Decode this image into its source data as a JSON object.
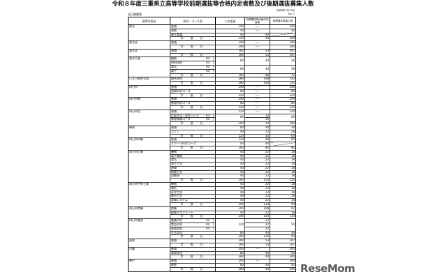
{
  "title": "令和８年度三重県立高等学校前期選抜等合格内定者数及び後期選抜募集人数",
  "date": "令和8年2月13日",
  "page_no": "No. 1",
  "course_type": "全日制課程",
  "headers": {
    "school": "高等学校名",
    "course": "学科・コース名",
    "capacity": "入学定員",
    "early": "前期選抜等合格内定者数",
    "later": "後期選抜募集人数"
  },
  "watermark": "ReseMom",
  "schools": [
    {
      "name": "桑名",
      "rows": [
        {
          "course": "普通",
          "cap": "240",
          "early": "----",
          "later": "240"
        },
        {
          "course": "理数",
          "cap": "40",
          "early": "----",
          "later": "40"
        },
        {
          "course": "衛生看護",
          "cap": "40",
          "early": "40",
          "later": "",
          "diag": true
        },
        {
          "course": "学　校　計",
          "total": true,
          "cap": "320",
          "early": "40",
          "later": "280"
        }
      ]
    },
    {
      "name": "桑名西",
      "rows": [
        {
          "course": "普通",
          "cap": "240",
          "early": "----",
          "later": "240"
        },
        {
          "course": "学　校　計",
          "total": true,
          "cap": "240",
          "early": "----",
          "later": "240"
        }
      ]
    },
    {
      "name": "桑名北",
      "rows": [
        {
          "course": "普通",
          "cap": "160",
          "early": "53",
          "later": "107"
        },
        {
          "course": "学　校　計",
          "total": true,
          "cap": "160",
          "early": "53",
          "later": "107"
        }
      ]
    },
    {
      "name": "桑名工業",
      "rows": [
        {
          "course": "機械",
          "sub": "40",
          "cap": "80",
          "cap_span": 2,
          "early": "44",
          "early_span": 2,
          "later": "36",
          "later_span": 2
        },
        {
          "course": "材料技術",
          "sub": "40"
        },
        {
          "course": "電気",
          "sub": "40",
          "cap": "80",
          "cap_span": 2,
          "early": "44",
          "early_span": 2,
          "later": "36",
          "later_span": 2
        },
        {
          "course": "電子",
          "sub": "40"
        },
        {
          "course": "学　校　計",
          "total": true,
          "cap": "160",
          "early": "88",
          "later": "72"
        }
      ]
    },
    {
      "name": "いなべ総合学園",
      "rows": [
        {
          "course": "総合学科",
          "cap": "280",
          "early": "148",
          "later": "132"
        },
        {
          "course": "学　校　計",
          "total": true,
          "cap": "280",
          "early": "148",
          "later": "132"
        }
      ]
    },
    {
      "name": "四日市",
      "rows": [
        {
          "course": "普通",
          "cap": "240",
          "early": "----",
          "later": "240"
        },
        {
          "course": "国際科学コース",
          "cap": "80",
          "early": "----",
          "later": "80"
        },
        {
          "course": "学　校　計",
          "total": true,
          "cap": "320",
          "early": "----",
          "later": "320"
        }
      ]
    },
    {
      "name": "四日市南",
      "rows": [
        {
          "course": "普通",
          "cap": "240",
          "early": "----",
          "later": "240"
        },
        {
          "course": "数理科学コース",
          "cap": "80",
          "early": "----",
          "later": "80"
        },
        {
          "course": "学　校　計",
          "total": true,
          "cap": "320",
          "early": "----",
          "later": "320"
        }
      ]
    },
    {
      "name": "四日市西",
      "rows": [
        {
          "course": "普通",
          "cap": "120",
          "early": "----",
          "later": "120"
        },
        {
          "course": "比較文化・歴史コース",
          "sub": "40",
          "cap": "80",
          "cap_span": 2,
          "early": "10",
          "later": "60",
          "later_span": 2
        },
        {
          "course": "数理情報コース",
          "sub": "40",
          "early": "10"
        },
        {
          "course": "学　校　計",
          "total": true,
          "cap": "200",
          "early": "20",
          "later": "180"
        }
      ]
    },
    {
      "name": "朝明",
      "rows": [
        {
          "course": "普通",
          "cap": "80",
          "early": "44",
          "later": "36"
        },
        {
          "course": "ふくし",
          "cap": "40",
          "early": "12",
          "later": "28"
        },
        {
          "course": "学　校　計",
          "total": true,
          "cap": "120",
          "early": "56",
          "later": "64"
        }
      ]
    },
    {
      "name": "四日市四郷",
      "rows": [
        {
          "course": "普通",
          "cap": "120",
          "early": "40",
          "later": "80"
        },
        {
          "course": "スポーツ科学コース",
          "cap": "40",
          "early": "40",
          "later": "",
          "diag": true
        },
        {
          "course": "学　校　計",
          "total": true,
          "cap": "160",
          "early": "80",
          "later": "80"
        }
      ]
    },
    {
      "name": "四日市工業",
      "rows": [
        {
          "course": "機械",
          "cap": "40",
          "early": "22",
          "later": "18"
        },
        {
          "course": "電子機械",
          "cap": "40",
          "early": "22",
          "later": "18"
        },
        {
          "course": "電気",
          "cap": "40",
          "early": "22",
          "later": "18"
        },
        {
          "course": "電子工学",
          "cap": "40",
          "early": "22",
          "later": "18"
        },
        {
          "course": "建築",
          "cap": "40",
          "early": "22",
          "later": "18"
        },
        {
          "course": "物質工学",
          "cap": "40",
          "early": "22",
          "later": "18"
        },
        {
          "course": "自動車",
          "cap": "40",
          "early": "22",
          "later": "18"
        },
        {
          "course": "学　校　計",
          "total": true,
          "cap": "280",
          "early": "154",
          "later": "126"
        }
      ]
    },
    {
      "name": "四日市中央工業",
      "rows": [
        {
          "course": "機械",
          "cap": "40",
          "early": "22",
          "later": "18"
        },
        {
          "course": "電気",
          "cap": "40",
          "early": "22",
          "later": "18"
        },
        {
          "course": "化学工学",
          "cap": "40",
          "early": "22",
          "later": "18"
        },
        {
          "course": "都市工学",
          "cap": "40",
          "early": "22",
          "later": "18"
        },
        {
          "course": "設備システム",
          "cap": "40",
          "early": "22",
          "later": "18"
        },
        {
          "course": "学　校　計",
          "total": true,
          "cap": "200",
          "early": "110",
          "later": "90"
        }
      ]
    },
    {
      "name": "四日市商業",
      "rows": [
        {
          "course": "商業",
          "cap": "200",
          "early": "108",
          "later": "92"
        },
        {
          "course": "情報マネジメント",
          "cap": "40",
          "early": "22",
          "later": "18"
        },
        {
          "course": "学　校　計",
          "total": true,
          "cap": "240",
          "early": "130",
          "later": "110"
        }
      ]
    },
    {
      "name": "四日市農芸",
      "rows": [
        {
          "course": "農業科学",
          "sub": "40",
          "cap": "120",
          "cap_span": 3,
          "early": "22",
          "later": "54",
          "later_span": 3
        },
        {
          "course": "食品科学",
          "sub": "40",
          "early": "22"
        },
        {
          "course": "環境造園",
          "sub": "40",
          "early": "22"
        },
        {
          "course": "生活文化",
          "cap": "80",
          "early": "44",
          "later": "36"
        },
        {
          "course": "学　校　計",
          "total": true,
          "cap": "200",
          "early": "110",
          "later": "90"
        }
      ]
    },
    {
      "name": "菰野",
      "rows": [
        {
          "course": "普通",
          "cap": "160",
          "early": "53",
          "later": "107"
        },
        {
          "course": "学　校　計",
          "total": true,
          "cap": "160",
          "early": "53",
          "later": "107"
        }
      ]
    },
    {
      "name": "川越",
      "rows": [
        {
          "course": "普通",
          "cap": "200",
          "early": "----",
          "later": "200"
        },
        {
          "course": "国際文化",
          "cap": "80",
          "early": "40",
          "later": "40"
        },
        {
          "course": "学　校　計",
          "total": true,
          "cap": "280",
          "early": "40",
          "later": "240"
        }
      ]
    },
    {
      "name": "神戸",
      "rows": [
        {
          "course": "普通",
          "cap": "200",
          "early": "----",
          "later": "200"
        },
        {
          "course": "理数",
          "cap": "80",
          "early": "40",
          "later": "40"
        },
        {
          "course": "学　校　計",
          "total": true,
          "cap": "280",
          "early": "40",
          "later": "240"
        }
      ]
    }
  ]
}
